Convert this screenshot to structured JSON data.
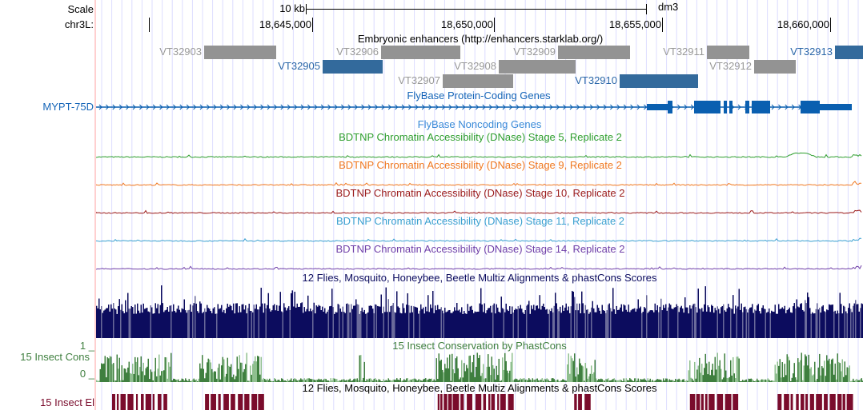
{
  "scale": {
    "label": "Scale",
    "size": "10 kb",
    "assembly": "dm3"
  },
  "position": {
    "chrom": "chr3L:",
    "ticks": [
      "18,645,000",
      "18,650,000",
      "18,655,000",
      "18,660,000"
    ]
  },
  "colors": {
    "enhancer_gray": "#939393",
    "enhancer_blue": "#336a9c",
    "gene_blue": "#0a5fb0",
    "stage5": "#2e9e2e",
    "stage9": "#f07820",
    "stage10": "#9b1b1b",
    "stage11": "#3aa0d0",
    "stage14": "#7040a8",
    "multiz": "#0c0c5e",
    "cons": "#3f7f3f",
    "elements": "#7a0c2c",
    "gridline": "#dcdcff"
  },
  "enhancers": {
    "title": "Embryonic enhancers (http://enhancers.starklab.org/)",
    "items": [
      "VT32903",
      "VT32905",
      "VT32906",
      "VT32907",
      "VT32908",
      "VT32909",
      "VT32910",
      "VT32911",
      "VT32912",
      "VT32913"
    ]
  },
  "genes": {
    "title": "FlyBase Protein-Coding Genes",
    "gene_name": "MYPT-75D",
    "noncoding_title": "FlyBase Noncoding Genes"
  },
  "dnase": [
    {
      "title": "BDTNP Chromatin Accessibility (DNase) Stage 5, Replicate 2"
    },
    {
      "title": "BDTNP Chromatin Accessibility (DNase) Stage 9, Replicate 2"
    },
    {
      "title": "BDTNP Chromatin Accessibility (DNase) Stage 10, Replicate 2"
    },
    {
      "title": "BDTNP Chromatin Accessibility (DNase) Stage 11, Replicate 2"
    },
    {
      "title": "BDTNP Chromatin Accessibility (DNase) Stage 14, Replicate 2"
    }
  ],
  "multiz": {
    "title": "12 Flies, Mosquito, Honeybee, Beetle Multiz Alignments & phastCons Scores"
  },
  "cons": {
    "label": "15 Insect Cons",
    "title": "15 Insect Conservation by PhastCons",
    "max": "1 _",
    "min": "0 _"
  },
  "elements": {
    "label": "15 Insect El",
    "title": "12 Flies, Mosquito, Honeybee, Beetle Multiz Alignments & phastCons Scores"
  }
}
